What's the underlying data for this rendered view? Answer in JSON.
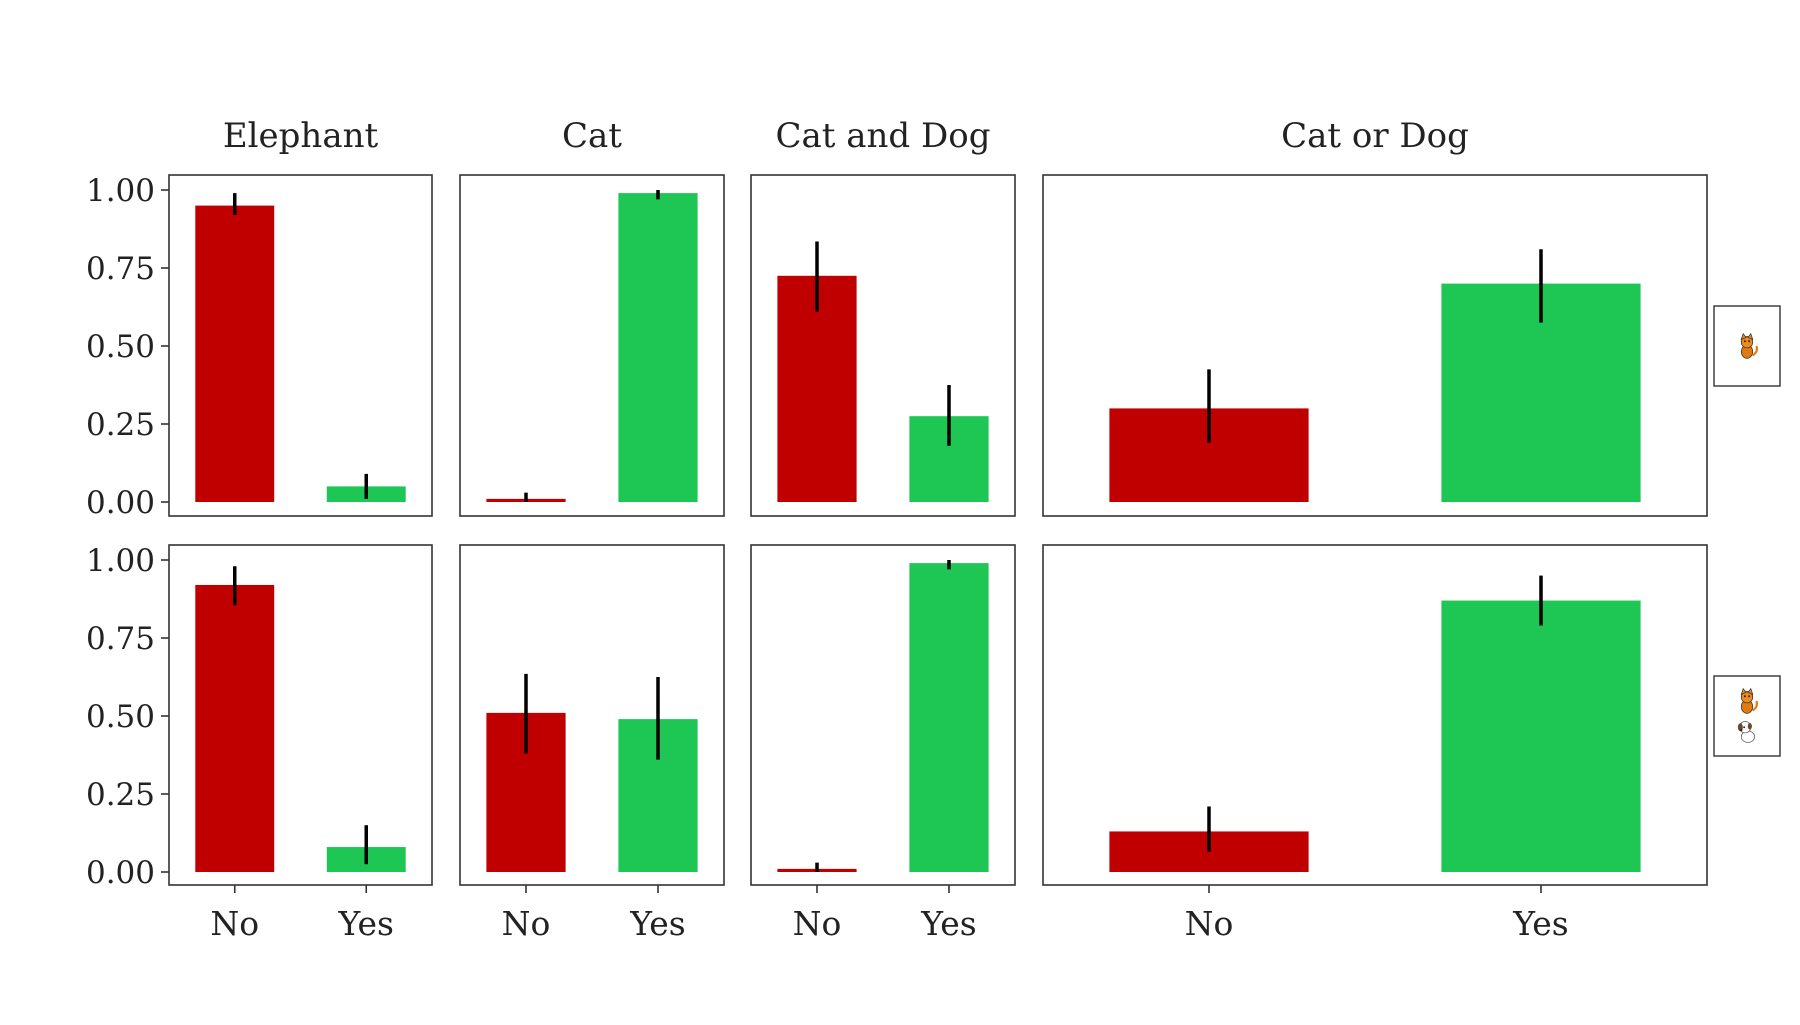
{
  "chart_data": {
    "type": "bar",
    "layout": "facet-grid",
    "ylim": [
      0,
      1
    ],
    "y_ticks": [
      "0.00",
      "0.25",
      "0.50",
      "0.75",
      "1.00"
    ],
    "categories": [
      "No",
      "Yes"
    ],
    "colors": {
      "No": "#c00000",
      "Yes": "#1ec653"
    },
    "facets": [
      {
        "title": "Elephant"
      },
      {
        "title": "Cat"
      },
      {
        "title": "Cat and Dog"
      },
      {
        "title": "Cat or Dog"
      }
    ],
    "rows": [
      {
        "strip_icons": [
          "cat-icon"
        ]
      },
      {
        "strip_icons": [
          "cat-icon",
          "dog-icon"
        ]
      }
    ],
    "panels": [
      {
        "row": 0,
        "facet": 0,
        "values": [
          0.95,
          0.05
        ],
        "err_low": [
          0.92,
          0.01
        ],
        "err_high": [
          0.99,
          0.09
        ]
      },
      {
        "row": 0,
        "facet": 1,
        "values": [
          0.01,
          0.99
        ],
        "err_low": [
          0.0,
          0.97
        ],
        "err_high": [
          0.03,
          1.0
        ]
      },
      {
        "row": 0,
        "facet": 2,
        "values": [
          0.725,
          0.275
        ],
        "err_low": [
          0.61,
          0.18
        ],
        "err_high": [
          0.835,
          0.375
        ]
      },
      {
        "row": 0,
        "facet": 3,
        "values": [
          0.3,
          0.7
        ],
        "err_low": [
          0.19,
          0.575
        ],
        "err_high": [
          0.425,
          0.81
        ]
      },
      {
        "row": 1,
        "facet": 0,
        "values": [
          0.92,
          0.08
        ],
        "err_low": [
          0.855,
          0.025
        ],
        "err_high": [
          0.98,
          0.15
        ]
      },
      {
        "row": 1,
        "facet": 1,
        "values": [
          0.51,
          0.49
        ],
        "err_low": [
          0.38,
          0.36
        ],
        "err_high": [
          0.635,
          0.625
        ]
      },
      {
        "row": 1,
        "facet": 2,
        "values": [
          0.01,
          0.99
        ],
        "err_low": [
          0.0,
          0.97
        ],
        "err_high": [
          0.03,
          1.0
        ]
      },
      {
        "row": 1,
        "facet": 3,
        "values": [
          0.13,
          0.87
        ],
        "err_low": [
          0.065,
          0.79
        ],
        "err_high": [
          0.21,
          0.95
        ]
      }
    ]
  }
}
